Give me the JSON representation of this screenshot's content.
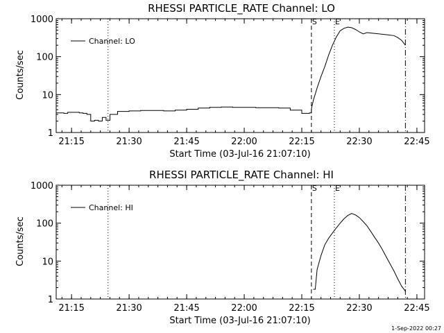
{
  "footer_timestamp": "1-Sep-2022 00:27",
  "chart_data": [
    {
      "type": "line",
      "title": "RHESSI PARTICLE_RATE Channel: LO",
      "xlabel": "Start Time (03-Jul-16 21:07:10)",
      "ylabel": "Counts/sec",
      "yscale": "log",
      "ylim": [
        1,
        1000
      ],
      "xlim_minutes": [
        21.1833,
        22.7833
      ],
      "xticks": [
        {
          "v": 21.25,
          "label": "21:15"
        },
        {
          "v": 21.5,
          "label": "21:30"
        },
        {
          "v": 21.75,
          "label": "21:45"
        },
        {
          "v": 22.0,
          "label": "22:00"
        },
        {
          "v": 22.25,
          "label": "22:15"
        },
        {
          "v": 22.5,
          "label": "22:30"
        },
        {
          "v": 22.75,
          "label": "22:45"
        }
      ],
      "yticks": [
        {
          "v": 1,
          "label": "1"
        },
        {
          "v": 10,
          "label": "10"
        },
        {
          "v": 100,
          "label": "100"
        },
        {
          "v": 1000,
          "label": "1000"
        }
      ],
      "legend": {
        "label": "Channel: LO",
        "placement": "top-left"
      },
      "markers": [
        {
          "x": 21.4083,
          "style": "dotted",
          "label": ""
        },
        {
          "x": 22.2917,
          "style": "dashed",
          "label": "S"
        },
        {
          "x": 22.3917,
          "style": "dotted",
          "label": "E"
        },
        {
          "x": 22.7,
          "style": "dashdot",
          "label": ""
        }
      ],
      "series": [
        {
          "name": "Channel: LO",
          "x": [
            21.1833,
            21.2167,
            21.2333,
            21.2833,
            21.3,
            21.3167,
            21.3333,
            21.35,
            21.3667,
            21.3833,
            21.4,
            21.4167,
            21.45,
            21.5,
            21.55,
            21.6,
            21.65,
            21.7,
            21.75,
            21.8,
            21.85,
            21.9,
            21.95,
            22.0,
            22.05,
            22.1,
            22.15,
            22.2,
            22.25,
            22.2833,
            22.2917,
            22.3,
            22.3167,
            22.3333,
            22.35,
            22.3667,
            22.3833,
            22.4,
            22.4167,
            22.4333,
            22.45,
            22.4667,
            22.4833,
            22.5,
            22.5167,
            22.5333,
            22.55,
            22.5833,
            22.6167,
            22.65,
            22.6667,
            22.6833,
            22.7
          ],
          "y": [
            3.3,
            3.2,
            3.4,
            3.3,
            3.2,
            3.0,
            2.0,
            2.1,
            2.0,
            2.5,
            2.1,
            3.0,
            3.6,
            3.7,
            3.8,
            3.8,
            3.7,
            3.9,
            4.1,
            4.4,
            4.6,
            4.7,
            4.6,
            4.6,
            4.5,
            4.5,
            4.4,
            3.9,
            3.2,
            3.3,
            4.2,
            7.0,
            15,
            30,
            55,
            110,
            200,
            330,
            480,
            560,
            600,
            580,
            520,
            450,
            400,
            430,
            420,
            400,
            380,
            360,
            320,
            270,
            200
          ]
        }
      ]
    },
    {
      "type": "line",
      "title": "RHESSI PARTICLE_RATE Channel: HI",
      "xlabel": "Start Time (03-Jul-16 21:07:10)",
      "ylabel": "Counts/sec",
      "yscale": "log",
      "ylim": [
        1,
        1000
      ],
      "xlim_minutes": [
        21.1833,
        22.7833
      ],
      "xticks": [
        {
          "v": 21.25,
          "label": "21:15"
        },
        {
          "v": 21.5,
          "label": "21:30"
        },
        {
          "v": 21.75,
          "label": "21:45"
        },
        {
          "v": 22.0,
          "label": "22:00"
        },
        {
          "v": 22.25,
          "label": "22:15"
        },
        {
          "v": 22.5,
          "label": "22:30"
        },
        {
          "v": 22.75,
          "label": "22:45"
        }
      ],
      "yticks": [
        {
          "v": 1,
          "label": "1"
        },
        {
          "v": 10,
          "label": "10"
        },
        {
          "v": 100,
          "label": "100"
        },
        {
          "v": 1000,
          "label": "1000"
        }
      ],
      "legend": {
        "label": "Channel: HI",
        "placement": "top-left"
      },
      "markers": [
        {
          "x": 21.4083,
          "style": "dotted",
          "label": ""
        },
        {
          "x": 22.2917,
          "style": "dashed",
          "label": "S"
        },
        {
          "x": 22.3917,
          "style": "dotted",
          "label": "E"
        },
        {
          "x": 22.7,
          "style": "dashdot",
          "label": ""
        }
      ],
      "series": [
        {
          "name": "Channel: HI",
          "x": [
            22.3,
            22.3083,
            22.3167,
            22.3333,
            22.35,
            22.3667,
            22.3833,
            22.4,
            22.4167,
            22.4333,
            22.45,
            22.4667,
            22.4833,
            22.5,
            22.5167,
            22.5333,
            22.55,
            22.5667,
            22.5833,
            22.6,
            22.6167,
            22.6333,
            22.65,
            22.6667,
            22.6833,
            22.7
          ],
          "y": [
            1.8,
            1.8,
            6.0,
            14,
            27,
            40,
            55,
            75,
            100,
            130,
            160,
            180,
            165,
            140,
            110,
            85,
            60,
            42,
            30,
            20,
            13,
            8.5,
            5.5,
            3.4,
            2.2,
            1.6
          ]
        }
      ]
    }
  ]
}
